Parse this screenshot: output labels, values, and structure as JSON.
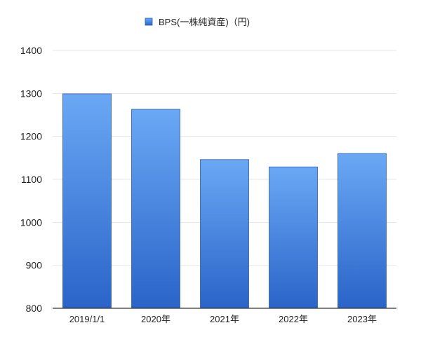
{
  "chart_data": {
    "type": "bar",
    "title": "",
    "xlabel": "",
    "ylabel": "",
    "legend": {
      "position": "top-center",
      "label": "BPS(一株純資産)（円)"
    },
    "categories": [
      "2019/1/1",
      "2020年",
      "2021年",
      "2022年",
      "2023年"
    ],
    "series": [
      {
        "name": "BPS(一株純資産)（円)",
        "values": [
          1299,
          1263,
          1146,
          1129,
          1160
        ]
      }
    ],
    "ylim": [
      800,
      1400
    ],
    "yticks": [
      800,
      900,
      1000,
      1100,
      1200,
      1300,
      1400
    ],
    "grid": true,
    "colors": {
      "bar_top": "#6aa8f5",
      "bar_bottom": "#2a64c8",
      "bar_edge": "#2a5cb8",
      "grid": "#e6e6e6",
      "axis": "#333333"
    }
  }
}
